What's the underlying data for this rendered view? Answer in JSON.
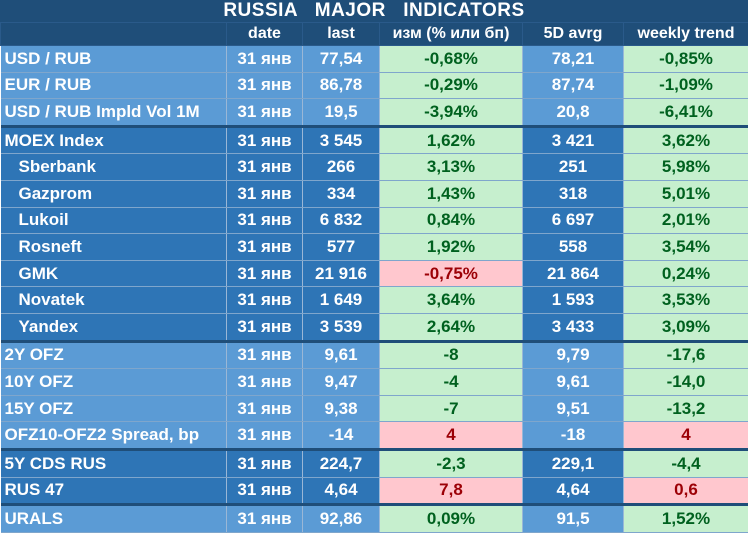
{
  "title": "RUSSIA   MAJOR   INDICATORS",
  "columns": [
    "",
    "date",
    "last",
    "изм (% или бп)",
    "5D avrg",
    "weekly trend"
  ],
  "rows": [
    {
      "name": "USD / RUB",
      "date": "31 янв",
      "last": "77,54",
      "change": "-0,68%",
      "avg5d": "78,21",
      "weekly": "-0,85%",
      "style": "light",
      "indent": false,
      "sep": false,
      "changeTone": "pos",
      "weeklyTone": "pos"
    },
    {
      "name": "EUR / RUB",
      "date": "31 янв",
      "last": "86,78",
      "change": "-0,29%",
      "avg5d": "87,74",
      "weekly": "-1,09%",
      "style": "light",
      "indent": false,
      "sep": false,
      "changeTone": "pos",
      "weeklyTone": "pos"
    },
    {
      "name": "USD / RUB Impld Vol 1M",
      "date": "31 янв",
      "last": "19,5",
      "change": "-3,94%",
      "avg5d": "20,8",
      "weekly": "-6,41%",
      "style": "light",
      "indent": false,
      "sep": false,
      "changeTone": "pos",
      "weeklyTone": "pos"
    },
    {
      "name": "MOEX Index",
      "date": "31 янв",
      "last": "3 545",
      "change": "1,62%",
      "avg5d": "3 421",
      "weekly": "3,62%",
      "style": "dark",
      "indent": false,
      "sep": true,
      "changeTone": "pos",
      "weeklyTone": "pos"
    },
    {
      "name": "Sberbank",
      "date": "31 янв",
      "last": "266",
      "change": "3,13%",
      "avg5d": "251",
      "weekly": "5,98%",
      "style": "dark",
      "indent": true,
      "sep": false,
      "changeTone": "pos",
      "weeklyTone": "pos"
    },
    {
      "name": "Gazprom",
      "date": "31 янв",
      "last": "334",
      "change": "1,43%",
      "avg5d": "318",
      "weekly": "5,01%",
      "style": "dark",
      "indent": true,
      "sep": false,
      "changeTone": "pos",
      "weeklyTone": "pos"
    },
    {
      "name": "Lukoil",
      "date": "31 янв",
      "last": "6 832",
      "change": "0,84%",
      "avg5d": "6 697",
      "weekly": "2,01%",
      "style": "dark",
      "indent": true,
      "sep": false,
      "changeTone": "pos",
      "weeklyTone": "pos"
    },
    {
      "name": "Rosneft",
      "date": "31 янв",
      "last": "577",
      "change": "1,92%",
      "avg5d": "558",
      "weekly": "3,54%",
      "style": "dark",
      "indent": true,
      "sep": false,
      "changeTone": "pos",
      "weeklyTone": "pos"
    },
    {
      "name": "GMK",
      "date": "31 янв",
      "last": "21 916",
      "change": "-0,75%",
      "avg5d": "21 864",
      "weekly": "0,24%",
      "style": "dark",
      "indent": true,
      "sep": false,
      "changeTone": "neg",
      "weeklyTone": "pos"
    },
    {
      "name": "Novatek",
      "date": "31 янв",
      "last": "1 649",
      "change": "3,64%",
      "avg5d": "1 593",
      "weekly": "3,53%",
      "style": "dark",
      "indent": true,
      "sep": false,
      "changeTone": "pos",
      "weeklyTone": "pos"
    },
    {
      "name": "Yandex",
      "date": "31 янв",
      "last": "3 539",
      "change": "2,64%",
      "avg5d": "3 433",
      "weekly": "3,09%",
      "style": "dark",
      "indent": true,
      "sep": false,
      "changeTone": "pos",
      "weeklyTone": "pos"
    },
    {
      "name": "2Y OFZ",
      "date": "31 янв",
      "last": "9,61",
      "change": "-8",
      "avg5d": "9,79",
      "weekly": "-17,6",
      "style": "light",
      "indent": false,
      "sep": true,
      "changeTone": "pos",
      "weeklyTone": "pos"
    },
    {
      "name": "10Y OFZ",
      "date": "31 янв",
      "last": "9,47",
      "change": "-4",
      "avg5d": "9,61",
      "weekly": "-14,0",
      "style": "light",
      "indent": false,
      "sep": false,
      "changeTone": "pos",
      "weeklyTone": "pos"
    },
    {
      "name": "15Y OFZ",
      "date": "31 янв",
      "last": "9,38",
      "change": "-7",
      "avg5d": "9,51",
      "weekly": "-13,2",
      "style": "light",
      "indent": false,
      "sep": false,
      "changeTone": "pos",
      "weeklyTone": "pos"
    },
    {
      "name": "OFZ10-OFZ2 Spread, bp",
      "date": "31 янв",
      "last": "-14",
      "change": "4",
      "avg5d": "-18",
      "weekly": "4",
      "style": "light",
      "indent": false,
      "sep": false,
      "changeTone": "neg",
      "weeklyTone": "neg"
    },
    {
      "name": "5Y CDS RUS",
      "date": "31 янв",
      "last": "224,7",
      "change": "-2,3",
      "avg5d": "229,1",
      "weekly": "-4,4",
      "style": "dark",
      "indent": false,
      "sep": true,
      "changeTone": "pos",
      "weeklyTone": "pos"
    },
    {
      "name": "RUS 47",
      "date": "31 янв",
      "last": "4,64",
      "change": "7,8",
      "avg5d": "4,64",
      "weekly": "0,6",
      "style": "dark",
      "indent": false,
      "sep": false,
      "changeTone": "neg",
      "weeklyTone": "neg"
    },
    {
      "name": "URALS",
      "date": "31 янв",
      "last": "92,86",
      "change": "0,09%",
      "avg5d": "91,5",
      "weekly": "1,52%",
      "style": "light",
      "indent": false,
      "sep": true,
      "changeTone": "pos",
      "weeklyTone": "pos"
    }
  ],
  "colors": {
    "header": "#1f4e79",
    "light_row": "#5b9bd5",
    "dark_row": "#2e75b6",
    "positive_fill": "#c6efce",
    "negative_fill": "#ffc7ce"
  }
}
